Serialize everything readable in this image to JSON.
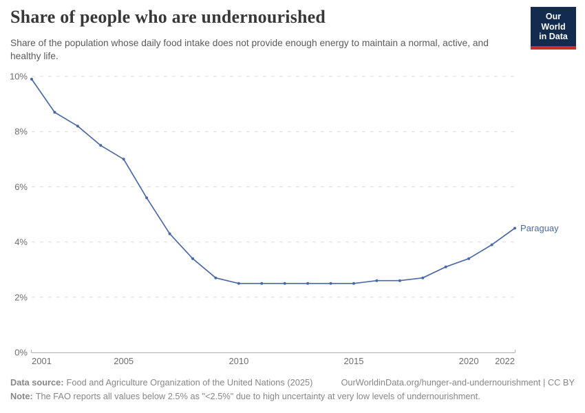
{
  "header": {
    "logo": {
      "line1": "Our World",
      "line2": "in Data",
      "bg_color": "#122B4F",
      "accent_color": "#C5312B"
    }
  },
  "chart_data": {
    "type": "line",
    "title": "Share of people who are undernourished",
    "subtitle": "Share of the population whose daily food intake does not provide enough energy to maintain a normal, active, and healthy life.",
    "categories": [
      2001,
      2002,
      2003,
      2004,
      2005,
      2006,
      2007,
      2008,
      2009,
      2010,
      2011,
      2012,
      2013,
      2014,
      2015,
      2016,
      2017,
      2018,
      2019,
      2020,
      2021,
      2022
    ],
    "series": [
      {
        "name": "Paraguay",
        "color": "#4A69A4",
        "values": [
          9.9,
          8.7,
          8.2,
          7.5,
          7.0,
          5.6,
          4.3,
          3.4,
          2.7,
          2.5,
          2.5,
          2.5,
          2.5,
          2.5,
          2.5,
          2.6,
          2.6,
          2.7,
          3.1,
          3.4,
          3.9,
          4.5
        ]
      }
    ],
    "xlim": [
      2001,
      2022
    ],
    "ylim": [
      0,
      10
    ],
    "x_ticks": [
      2001,
      2005,
      2010,
      2015,
      2020,
      2022
    ],
    "y_ticks": [
      0,
      2,
      4,
      6,
      8,
      10
    ],
    "y_tick_suffix": "%",
    "grid": true,
    "grid_color": "#dcdcdc",
    "axis_color": "#adadad",
    "tick_label_color": "#6e6e6e",
    "legend_position": "end-of-line"
  },
  "footer": {
    "data_source_label": "Data source:",
    "data_source_text": "Food and Agriculture Organization of the United Nations (2025)",
    "link_text": "OurWorldinData.org/hunger-and-undernourishment | CC BY",
    "note_label": "Note:",
    "note_text": "The FAO reports all values below 2.5% as \"<2.5%\" due to high uncertainty at very low levels of undernourishment."
  }
}
